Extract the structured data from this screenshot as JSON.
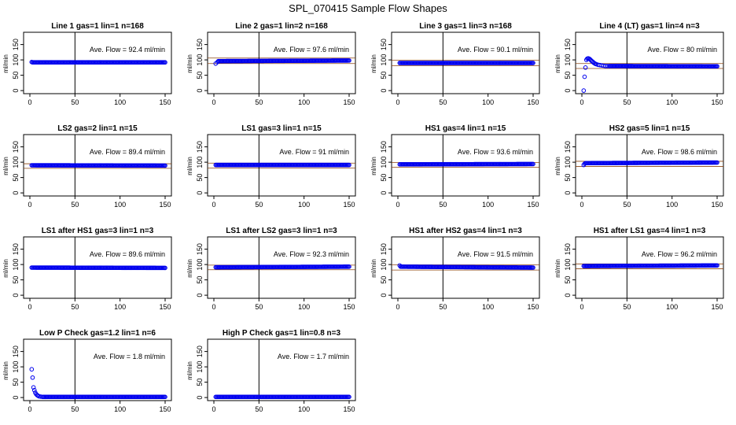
{
  "figure": {
    "title": "SPL_070415  Sample Flow Shapes",
    "colors": {
      "points": "#0000ee",
      "axes": "#000000",
      "reference": "#8b4513"
    }
  },
  "chart_data": [
    {
      "type": "scatter",
      "title": "Line 1 gas=1 lin=1 n=168",
      "ylabel": "ml/min",
      "xlim": [
        0,
        150
      ],
      "ylim": [
        -10,
        190
      ],
      "xticks": [
        0,
        50,
        100,
        150
      ],
      "yticks": [
        0,
        50,
        100,
        150
      ],
      "vline": 50,
      "hlines": [],
      "annotation": "Ave. Flow = 92.4  ml/min",
      "x": [
        2
      ],
      "y": [
        93
      ],
      "fill_from": 3,
      "fill_to": 150,
      "fill_y": [
        92,
        92
      ]
    },
    {
      "type": "scatter",
      "title": "Line 2 gas=1 lin=2 n=168",
      "ylabel": "ml/min",
      "xlim": [
        0,
        150
      ],
      "ylim": [
        -10,
        190
      ],
      "xticks": [
        0,
        50,
        100,
        150
      ],
      "yticks": [
        0,
        50,
        100,
        150
      ],
      "vline": 50,
      "hlines": [
        106,
        88
      ],
      "annotation": "Ave. Flow = 97.6  ml/min",
      "x": [
        2,
        4
      ],
      "y": [
        88,
        93
      ],
      "fill_from": 5,
      "fill_to": 150,
      "fill_y": [
        96,
        98
      ]
    },
    {
      "type": "scatter",
      "title": "Line 3 gas=1 lin=3 n=168",
      "ylabel": "ml/min",
      "xlim": [
        0,
        150
      ],
      "ylim": [
        -10,
        190
      ],
      "xticks": [
        0,
        50,
        100,
        150
      ],
      "yticks": [
        0,
        50,
        100,
        150
      ],
      "vline": 50,
      "hlines": [
        99,
        81
      ],
      "annotation": "Ave. Flow = 90.1  ml/min",
      "x": [],
      "y": [],
      "fill_from": 2,
      "fill_to": 150,
      "fill_y": [
        90,
        90
      ]
    },
    {
      "type": "scatter",
      "title": "Line 4 (LT) gas=1 lin=4 n=3",
      "ylabel": "ml/min",
      "xlim": [
        0,
        150
      ],
      "ylim": [
        -10,
        190
      ],
      "xticks": [
        0,
        50,
        100,
        150
      ],
      "yticks": [
        0,
        50,
        100,
        150
      ],
      "vline": 50,
      "hlines": [
        88,
        72
      ],
      "annotation": "Ave. Flow = 80  ml/min",
      "x": [
        2,
        3,
        4,
        5,
        6,
        7,
        8,
        9,
        10,
        11,
        12,
        13,
        14,
        15,
        16,
        18,
        20,
        22,
        24,
        26,
        28
      ],
      "y": [
        0,
        45,
        75,
        100,
        104,
        105,
        104,
        102,
        99,
        96,
        94,
        91,
        89,
        87,
        86,
        84,
        83,
        82,
        81,
        80,
        80
      ],
      "fill_from": 30,
      "fill_to": 150,
      "fill_y": [
        80,
        79
      ]
    },
    {
      "type": "scatter",
      "title": "LS2 gas=2 lin=1 n=15",
      "ylabel": "ml/min",
      "xlim": [
        0,
        150
      ],
      "ylim": [
        -10,
        190
      ],
      "xticks": [
        0,
        50,
        100,
        150
      ],
      "yticks": [
        0,
        50,
        100,
        150
      ],
      "vline": 50,
      "hlines": [
        95,
        80
      ],
      "annotation": "Ave. Flow = 89.4  ml/min",
      "x": [],
      "y": [],
      "fill_from": 2,
      "fill_to": 150,
      "fill_y": [
        90,
        89
      ]
    },
    {
      "type": "scatter",
      "title": "LS1 gas=3 lin=1 n=15",
      "ylabel": "ml/min",
      "xlim": [
        0,
        150
      ],
      "ylim": [
        -10,
        190
      ],
      "xticks": [
        0,
        50,
        100,
        150
      ],
      "yticks": [
        0,
        50,
        100,
        150
      ],
      "vline": 50,
      "hlines": [
        97,
        81
      ],
      "annotation": "Ave. Flow = 91  ml/min",
      "x": [],
      "y": [],
      "fill_from": 2,
      "fill_to": 150,
      "fill_y": [
        91,
        91
      ]
    },
    {
      "type": "scatter",
      "title": "HS1 gas=4 lin=1 n=15",
      "ylabel": "ml/min",
      "xlim": [
        0,
        150
      ],
      "ylim": [
        -10,
        190
      ],
      "xticks": [
        0,
        50,
        100,
        150
      ],
      "yticks": [
        0,
        50,
        100,
        150
      ],
      "vline": 50,
      "hlines": [
        99,
        84
      ],
      "annotation": "Ave. Flow = 93.6  ml/min",
      "x": [],
      "y": [],
      "fill_from": 2,
      "fill_to": 150,
      "fill_y": [
        93,
        94
      ]
    },
    {
      "type": "scatter",
      "title": "HS2 gas=5 lin=1 n=15",
      "ylabel": "ml/min",
      "xlim": [
        0,
        150
      ],
      "ylim": [
        -10,
        190
      ],
      "xticks": [
        0,
        50,
        100,
        150
      ],
      "yticks": [
        0,
        50,
        100,
        150
      ],
      "vline": 50,
      "hlines": [
        103,
        86
      ],
      "annotation": "Ave. Flow = 98.6  ml/min",
      "x": [
        2,
        3
      ],
      "y": [
        91,
        95
      ],
      "fill_from": 4,
      "fill_to": 150,
      "fill_y": [
        97,
        99
      ]
    },
    {
      "type": "scatter",
      "title": "LS1 after HS1 gas=3 lin=1 n=3",
      "ylabel": "ml/min",
      "xlim": [
        0,
        150
      ],
      "ylim": [
        -10,
        190
      ],
      "xticks": [
        0,
        50,
        100,
        150
      ],
      "yticks": [
        0,
        50,
        100,
        150
      ],
      "vline": 50,
      "hlines": [],
      "annotation": "Ave. Flow = 89.6  ml/min",
      "x": [],
      "y": [],
      "fill_from": 2,
      "fill_to": 150,
      "fill_y": [
        90,
        89
      ]
    },
    {
      "type": "scatter",
      "title": "LS1 after LS2 gas=3 lin=1 n=3",
      "ylabel": "ml/min",
      "xlim": [
        0,
        150
      ],
      "ylim": [
        -10,
        190
      ],
      "xticks": [
        0,
        50,
        100,
        150
      ],
      "yticks": [
        0,
        50,
        100,
        150
      ],
      "vline": 50,
      "hlines": [
        98,
        83
      ],
      "annotation": "Ave. Flow = 92.3  ml/min",
      "x": [],
      "y": [],
      "fill_from": 2,
      "fill_to": 150,
      "fill_y": [
        91,
        93
      ]
    },
    {
      "type": "scatter",
      "title": "HS1 after HS2 gas=4 lin=1 n=3",
      "ylabel": "ml/min",
      "xlim": [
        0,
        150
      ],
      "ylim": [
        -10,
        190
      ],
      "xticks": [
        0,
        50,
        100,
        150
      ],
      "yticks": [
        0,
        50,
        100,
        150
      ],
      "vline": 50,
      "hlines": [
        99,
        82
      ],
      "annotation": "Ave. Flow = 91.5  ml/min",
      "x": [
        2
      ],
      "y": [
        97
      ],
      "fill_from": 3,
      "fill_to": 150,
      "fill_y": [
        93,
        90
      ]
    },
    {
      "type": "scatter",
      "title": "HS1 after LS1 gas=4 lin=1 n=3",
      "ylabel": "ml/min",
      "xlim": [
        0,
        150
      ],
      "ylim": [
        -10,
        190
      ],
      "xticks": [
        0,
        50,
        100,
        150
      ],
      "yticks": [
        0,
        50,
        100,
        150
      ],
      "vline": 50,
      "hlines": [
        102,
        86
      ],
      "annotation": "Ave. Flow = 96.2  ml/min",
      "x": [],
      "y": [],
      "fill_from": 2,
      "fill_to": 150,
      "fill_y": [
        95,
        97
      ]
    },
    {
      "type": "scatter",
      "title": "Low P Check gas=1.2 lin=1 n=6",
      "ylabel": "ml/min",
      "xlim": [
        0,
        150
      ],
      "ylim": [
        -10,
        190
      ],
      "xticks": [
        0,
        50,
        100,
        150
      ],
      "yticks": [
        0,
        50,
        100,
        150
      ],
      "vline": 50,
      "hlines": [],
      "annotation": "Ave. Flow = 1.8  ml/min",
      "x": [
        2,
        3,
        4,
        5,
        6,
        7,
        8,
        9,
        10,
        12,
        14
      ],
      "y": [
        92,
        65,
        33,
        24,
        16,
        11,
        8,
        6,
        4,
        3,
        2
      ],
      "fill_from": 15,
      "fill_to": 150,
      "fill_y": [
        2,
        2
      ]
    },
    {
      "type": "scatter",
      "title": "High P Check gas=1 lin=0.8 n=3",
      "ylabel": "ml/min",
      "xlim": [
        0,
        150
      ],
      "ylim": [
        -10,
        190
      ],
      "xticks": [
        0,
        50,
        100,
        150
      ],
      "yticks": [
        0,
        50,
        100,
        150
      ],
      "vline": 50,
      "hlines": [],
      "annotation": "Ave. Flow = 1.7  ml/min",
      "x": [],
      "y": [],
      "fill_from": 2,
      "fill_to": 150,
      "fill_y": [
        2,
        2
      ]
    }
  ]
}
